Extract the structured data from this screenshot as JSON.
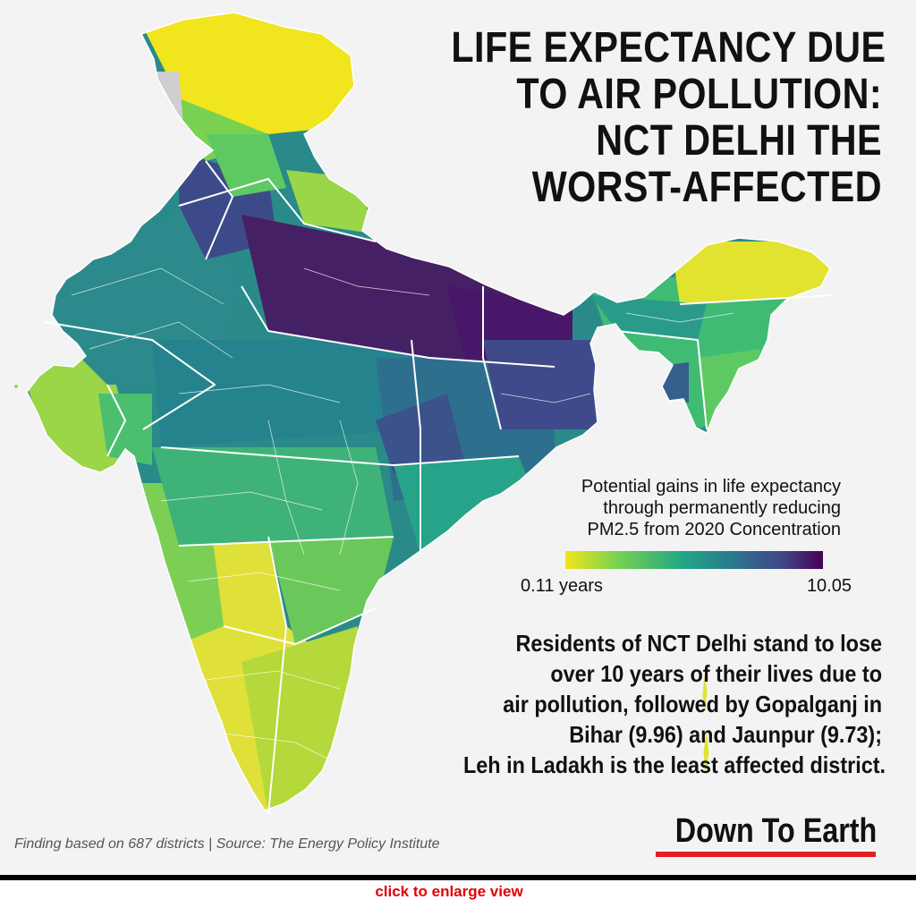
{
  "headline": {
    "line1": "LIFE EXPECTANCY DUE",
    "line2": "TO AIR POLLUTION:",
    "line3": "NCT DELHI THE",
    "line4": "WORST-AFFECTED"
  },
  "legend": {
    "title1": "Potential gains in life expectancy",
    "title2": "through permanently reducing",
    "title3": "PM2.5 from 2020 Concentration",
    "min_label": "0.11 years",
    "max_label": "10.05",
    "min_value": 0.11,
    "max_value": 10.05,
    "color_stops": [
      "#f1e51d",
      "#7ad151",
      "#22a884",
      "#2a788e",
      "#414487",
      "#440154"
    ]
  },
  "finding": {
    "line1": "Residents of NCT Delhi stand to lose",
    "line2": "over 10 years of their lives due to",
    "line3": "air pollution, followed by Gopalganj in",
    "line4": "Bihar (9.96) and Jaunpur (9.73);",
    "line5": "Leh in Ladakh is the least affected district."
  },
  "footnote": "Finding based on 687 districts | Source: The Energy Policy Institute",
  "brand": "Down To Earth",
  "enlarge_link": "click to enlarge view",
  "colors": {
    "background": "#f3f3f3",
    "border_white": "#ffffff",
    "brand_red": "#e31e24",
    "link_red": "#e00000",
    "no_data_grey": "#cfcfcf"
  }
}
